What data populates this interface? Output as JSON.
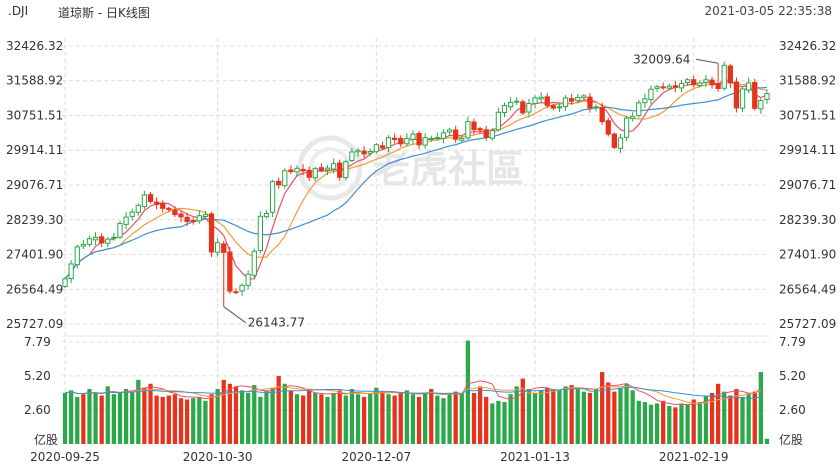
{
  "header": {
    "symbol": ".DJI",
    "title": "道琼斯 - 日K线图",
    "timestamp": "2021-03-05 22:35:38"
  },
  "watermark": "老虎社區",
  "colors": {
    "up": "#2aa84a",
    "down": "#e8331c",
    "ma_blue": "#3f8fd2",
    "ma_orange": "#f29b3a",
    "ma_pink": "#e8536a",
    "grid": "#dcdcdc"
  },
  "chart_data": [
    {
      "type": "candlestick",
      "y_ticks": [
        "32426.32",
        "31588.92",
        "30751.51",
        "29914.11",
        "29076.71",
        "28239.30",
        "27401.90",
        "26564.49",
        "25727.09"
      ],
      "ylim": [
        25727.09,
        32426.32
      ],
      "x_ticks": [
        "2020-09-25",
        "2020-10-30",
        "2020-12-07",
        "2021-01-13",
        "2021-02-19"
      ],
      "annotations": [
        {
          "label": "32009.64",
          "value": 32009.64,
          "type": "max"
        },
        {
          "label": "26143.77",
          "value": 26143.77,
          "type": "min"
        }
      ],
      "closes": [
        26815,
        27174,
        27584,
        27647,
        27781,
        27817,
        27682,
        27772,
        27816,
        28148,
        28303,
        28425,
        28586,
        28837,
        28679,
        28606,
        28514,
        28495,
        28364,
        28308,
        28195,
        28210,
        28336,
        28363,
        27463,
        27686,
        27452,
        26519,
        26501,
        26659,
        26925,
        27480,
        28323,
        28390,
        29157,
        29080,
        29420,
        29398,
        29479,
        29420,
        29263,
        29470,
        29438,
        29483,
        29591,
        29263,
        29638,
        29872,
        29911,
        29824,
        29883,
        30047,
        29969,
        30218,
        30174,
        30069,
        30199,
        30303,
        30046,
        30218,
        30199,
        30218,
        30335,
        30404,
        30179,
        30199,
        30606,
        30409,
        30403,
        30224,
        30392,
        30829,
        30991,
        31068,
        31097,
        30814,
        31041,
        31176,
        31188,
        30997,
        30930,
        30961,
        31176,
        31097,
        31186,
        31223,
        30937,
        30960,
        30603,
        30304,
        29983,
        30212,
        30688,
        30724,
        31056,
        31154,
        31386,
        31445,
        31438,
        31458,
        31430,
        31522,
        31613,
        31494,
        31536,
        31613,
        31493,
        31402,
        31961,
        31537,
        30933,
        31391,
        31535,
        30924,
        31114,
        31280
      ]
    },
    {
      "type": "bar",
      "title": "",
      "y_ticks": [
        "7.79",
        "5.20",
        "2.60"
      ],
      "y_unit_label": "亿股",
      "ylim": [
        0,
        7.79
      ],
      "values": [
        3.9,
        4.1,
        3.6,
        3.8,
        4.2,
        3.9,
        3.7,
        4.4,
        3.8,
        3.9,
        4.2,
        4.0,
        4.9,
        4.3,
        4.6,
        3.7,
        3.6,
        3.7,
        3.8,
        3.5,
        3.4,
        3.5,
        3.6,
        3.3,
        3.8,
        4.2,
        4.9,
        4.6,
        4.4,
        4.1,
        3.9,
        4.5,
        3.6,
        4.1,
        4.3,
        5.2,
        4.6,
        4.1,
        3.8,
        3.7,
        4.1,
        3.9,
        3.8,
        3.6,
        3.9,
        4.1,
        3.7,
        4.2,
        3.8,
        3.6,
        3.9,
        4.3,
        4.0,
        3.8,
        3.7,
        3.9,
        4.1,
        3.8,
        3.6,
        3.9,
        4.2,
        3.7,
        3.5,
        3.8,
        4.0,
        3.9,
        7.9,
        3.9,
        4.4,
        3.6,
        3.1,
        3.3,
        3.2,
        3.8,
        4.4,
        5.0,
        4.2,
        3.9,
        4.1,
        4.3,
        4.2,
        4.1,
        4.4,
        4.5,
        4.3,
        4.0,
        3.9,
        4.2,
        5.5,
        4.7,
        4.0,
        4.3,
        4.6,
        4.1,
        3.3,
        3.2,
        3.0,
        3.1,
        3.3,
        2.9,
        2.8,
        3.1,
        3.0,
        3.4,
        3.2,
        3.7,
        3.9,
        4.6,
        4.0,
        3.7,
        4.2,
        3.6,
        3.9,
        4.0,
        5.5,
        0.4
      ],
      "up_flags": [
        1,
        1,
        1,
        0,
        1,
        1,
        0,
        1,
        1,
        1,
        1,
        1,
        1,
        0,
        0,
        0,
        0,
        0,
        0,
        0,
        0,
        1,
        1,
        1,
        0,
        1,
        0,
        0,
        0,
        1,
        1,
        1,
        1,
        1,
        1,
        0,
        1,
        0,
        1,
        0,
        0,
        1,
        0,
        1,
        1,
        0,
        1,
        1,
        1,
        0,
        1,
        1,
        0,
        1,
        0,
        0,
        1,
        1,
        0,
        1,
        0,
        1,
        1,
        1,
        0,
        1,
        1,
        0,
        0,
        0,
        1,
        1,
        1,
        1,
        1,
        0,
        1,
        1,
        1,
        0,
        0,
        1,
        1,
        0,
        1,
        1,
        0,
        1,
        0,
        0,
        0,
        1,
        1,
        1,
        1,
        1,
        1,
        1,
        0,
        1,
        0,
        1,
        1,
        0,
        1,
        1,
        0,
        0,
        1,
        0,
        0,
        1,
        1,
        0,
        1,
        1
      ]
    }
  ]
}
